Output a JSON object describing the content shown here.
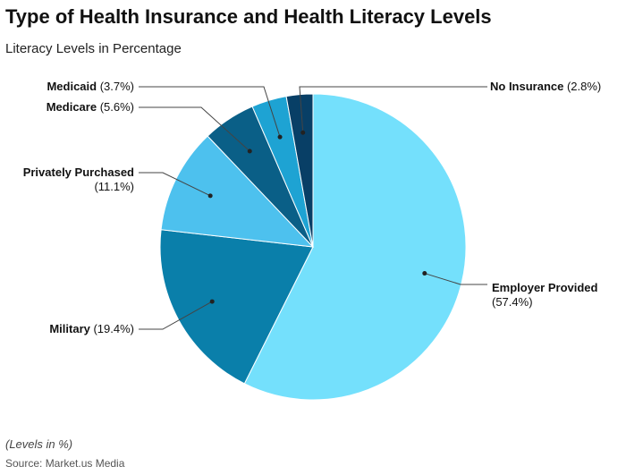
{
  "chart_data": {
    "type": "pie",
    "title": "Type of Health Insurance and Health Literacy Levels",
    "subtitle": "Literacy Levels in Percentage",
    "note": "(Levels in %)",
    "source": "Source: Market.us Media",
    "slices": [
      {
        "label": "Employer Provided",
        "value": 57.4,
        "display": "(57.4%)",
        "color": "#74E0FC"
      },
      {
        "label": "Military",
        "value": 19.4,
        "display": "(19.4%)",
        "color": "#0A7FAA"
      },
      {
        "label": "Privately Purchased",
        "value": 11.1,
        "display": "(11.1%)",
        "color": "#4DC1EE"
      },
      {
        "label": "Medicare",
        "value": 5.6,
        "display": "(5.6%)",
        "color": "#0A5F87"
      },
      {
        "label": "Medicaid",
        "value": 3.7,
        "display": "(3.7%)",
        "color": "#1EA3D3"
      },
      {
        "label": "No Insurance",
        "value": 2.8,
        "display": "(2.8%)",
        "color": "#083F66"
      }
    ]
  }
}
